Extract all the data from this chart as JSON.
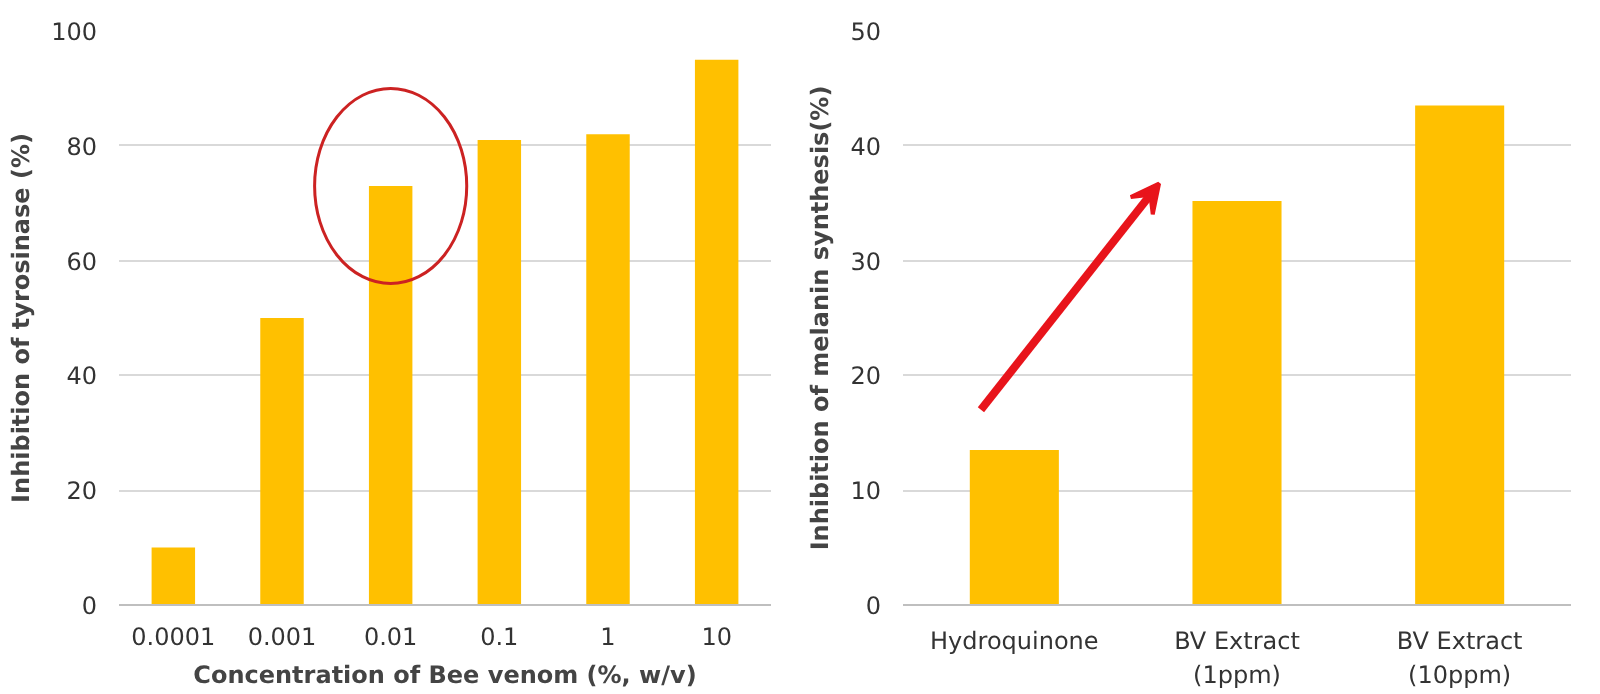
{
  "chart_data": [
    {
      "type": "bar",
      "xlabel": "Concentration of Bee venom (%, w/v)",
      "ylabel": "Inhibition of tyrosinase (%)",
      "categories": [
        "0.0001",
        "0.001",
        "0.01",
        "0.1",
        "1",
        "10"
      ],
      "values": [
        10,
        50,
        73,
        81,
        82,
        95
      ],
      "color": "#ffc000",
      "ylim": [
        0,
        100
      ],
      "yticks": [
        0,
        20,
        40,
        60,
        80,
        100
      ],
      "grid": "y"
    },
    {
      "type": "bar",
      "ylabel": "Inhibition of melanin synthesis(%)",
      "categories": [
        "Hydroquinone",
        "BV Extract\n(1ppm)",
        "BV Extract\n(10ppm)"
      ],
      "values": [
        13.5,
        35.2,
        43.5
      ],
      "color": "#ffc000",
      "ylim": [
        0,
        50
      ],
      "yticks": [
        0,
        10,
        20,
        30,
        40,
        50
      ],
      "grid": "y"
    }
  ]
}
